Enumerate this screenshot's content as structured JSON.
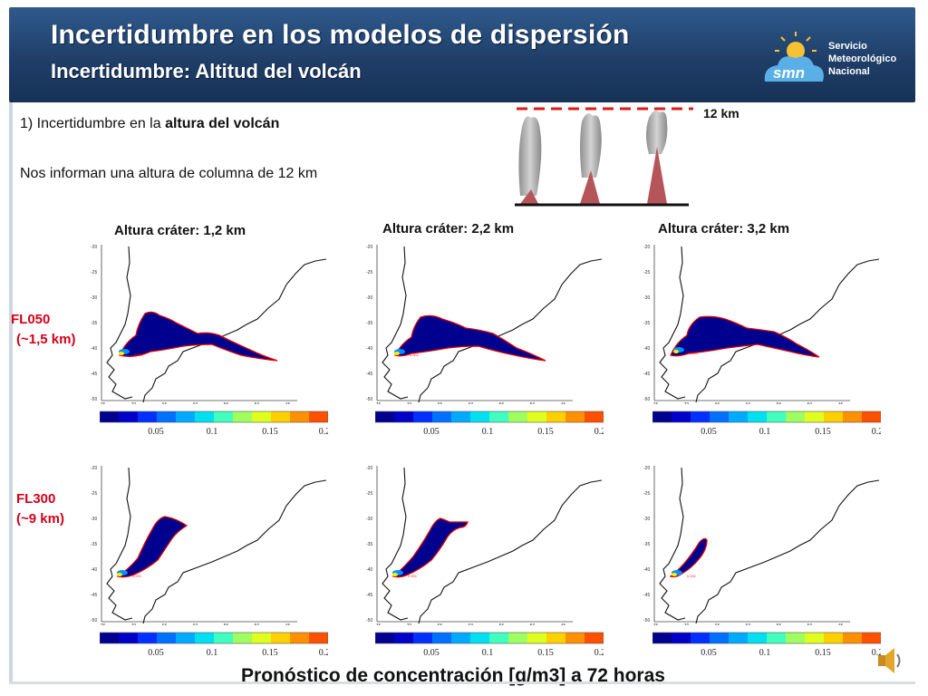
{
  "header": {
    "title": "Incertidumbre en los modelos de dispersión",
    "subtitle": "Incertidumbre: Altitud del volcán",
    "logo_mark": "smn",
    "logo_lines": [
      "Servicio",
      "Meteorológico",
      "Nacional"
    ]
  },
  "body": {
    "point_prefix": "1) Incertidumbre en la ",
    "point_bold": "altura del volcán",
    "info": "Nos informan una altura de columna  de 12 km",
    "height_label": "12 km"
  },
  "columns": [
    "Altura cráter: 1,2 km",
    "Altura cráter: 2,2 km",
    "Altura cráter: 3,2 km"
  ],
  "rows": [
    {
      "name": "FL050",
      "alt": "(~1,5 km)"
    },
    {
      "name": "FL300",
      "alt": "(~9 km)"
    }
  ],
  "map_axes": {
    "lat_ticks": [
      "-20",
      "-25",
      "-30",
      "-35",
      "-40",
      "-45",
      "-50"
    ],
    "lon_ticks": [
      "-75",
      "-70",
      "-65",
      "-60",
      "-55",
      "-50",
      "-45"
    ]
  },
  "plume_label": "0.001",
  "colorbar": {
    "ticks": [
      "0.05",
      "0.1",
      "0.15",
      "0.2"
    ],
    "colors": [
      "#00008f",
      "#0000c8",
      "#0030ff",
      "#0070ff",
      "#00aaff",
      "#00e0f0",
      "#40ffbf",
      "#9fff60",
      "#dfff20",
      "#ffd000",
      "#ff9000",
      "#ff5000"
    ]
  },
  "caption": "Pronóstico de concentración [g/m3] a 72 horas",
  "colors": {
    "header": "#1f3e68",
    "row_label": "#d4001a",
    "plume_fill": "#00008f",
    "plume_edge": "#e00000",
    "cone": "#b5555a"
  },
  "icons": [
    "sun-icon",
    "speaker-icon"
  ]
}
